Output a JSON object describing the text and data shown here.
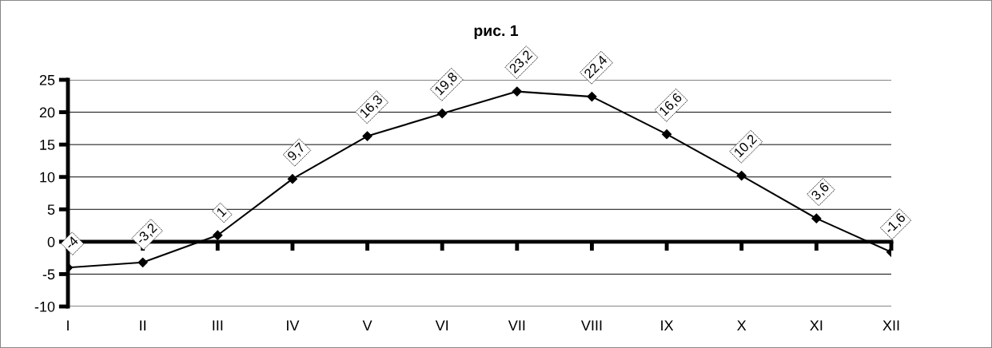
{
  "chart_data": {
    "type": "line",
    "title": "рис. 1",
    "categories": [
      "I",
      "II",
      "III",
      "IV",
      "V",
      "VI",
      "VII",
      "VIII",
      "IX",
      "X",
      "XI",
      "XII"
    ],
    "series": [
      {
        "color": "#000000",
        "values": [
          -4,
          -3.2,
          1,
          9.7,
          16.3,
          19.8,
          23.2,
          22.4,
          16.6,
          10.2,
          3.6,
          -1.6
        ],
        "value_labels": [
          "-4",
          "-3,2",
          "1",
          "9,7",
          "16,3",
          "19,8",
          "23,2",
          "22,4",
          "16,6",
          "10,2",
          "3,6",
          "-1,6"
        ]
      }
    ],
    "ylim": [
      -10,
      25
    ],
    "yticks": [
      -10,
      -5,
      0,
      5,
      10,
      15,
      20,
      25
    ],
    "grid": "y",
    "marker": "diamond",
    "line_style": "solid",
    "legend": false
  }
}
